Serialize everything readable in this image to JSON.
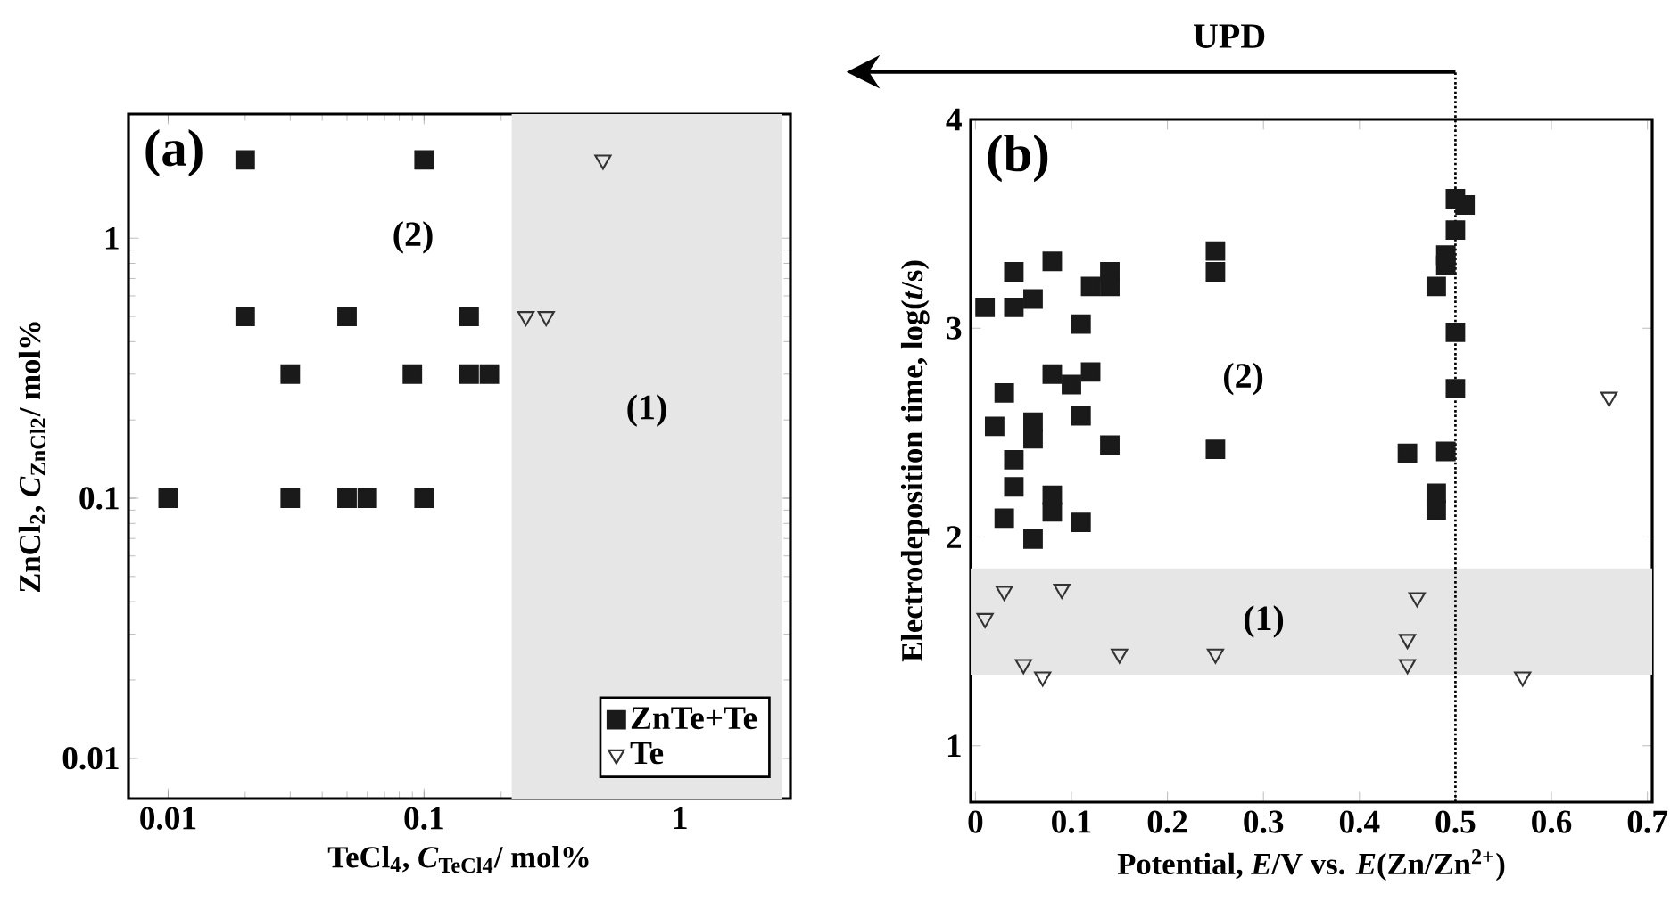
{
  "chart_data": [
    {
      "type": "scatter",
      "xlabel": "TeCl$_{4}$, *C*$_{TeCl4}$/ mol%",
      "ylabel": "ZnCl$_{2}$, *C*$_{ZnCl2}$/ mol%",
      "log": "xy",
      "xlim": [
        0.007,
        2.7
      ],
      "ylim": [
        0.007,
        3
      ],
      "xticks": [
        0.01,
        0.1,
        1
      ],
      "yticks": [
        0.01,
        0.1,
        1
      ],
      "legend": "bottom right",
      "annotations": [
        "(a)",
        "(2)"
      ],
      "bands": [
        {
          "axis": "x",
          "from": 0.22,
          "to": 2.5,
          "label": "(1)",
          "color": "#e6e6e6"
        }
      ],
      "series": [
        {
          "name": "ZnTe+Te",
          "color": "#1a1a1a",
          "marker": "square",
          "x": [
            0.02,
            0.1,
            0.02,
            0.05,
            0.15,
            0.03,
            0.09,
            0.15,
            0.18,
            0.01,
            0.03,
            0.05,
            0.06,
            0.1
          ],
          "values": [
            2,
            2,
            0.5,
            0.5,
            0.5,
            0.3,
            0.3,
            0.3,
            0.3,
            0.1,
            0.1,
            0.1,
            0.1,
            0.1
          ]
        },
        {
          "name": "Te",
          "color": "#333333",
          "marker": "triangle",
          "x": [
            0.5,
            0.25,
            0.3
          ],
          "values": [
            2,
            0.5,
            0.5
          ]
        }
      ]
    },
    {
      "type": "scatter",
      "xlabel": "Potential, *E*/V vs. *E*(Zn/Zn$^{2+}$)",
      "ylabel": "Electrodeposition time, log(*t*/s)",
      "xlim": [
        -0.005,
        0.705
      ],
      "ylim": [
        0.73,
        4
      ],
      "xticks": [
        0,
        0.1,
        0.2,
        0.3,
        0.4,
        0.5,
        0.6,
        0.7
      ],
      "yticks": [
        1,
        2,
        3,
        4
      ],
      "annotations": [
        "(b)",
        "(2)"
      ],
      "bands": [
        {
          "axis": "y",
          "from": 1.34,
          "to": 1.85,
          "label": "(1)",
          "color": "#e6e6e6"
        }
      ],
      "ref_lines": [
        {
          "axis": "x",
          "value": 0.5,
          "label": "UPD",
          "line_style": "dotted"
        }
      ],
      "series": [
        {
          "color": "#1a1a1a",
          "marker": "square",
          "x": [
            0.01,
            0.04,
            0.04,
            0.06,
            0.08,
            0.12,
            0.14,
            0.14,
            0.11,
            0.25,
            0.25,
            0.03,
            0.02,
            0.08,
            0.1,
            0.12,
            0.06,
            0.06,
            0.04,
            0.04,
            0.11,
            0.14,
            0.25,
            0.03,
            0.06,
            0.08,
            0.08,
            0.11,
            0.45,
            0.49,
            0.48,
            0.48,
            0.48,
            0.49,
            0.49,
            0.5,
            0.5,
            0.51,
            0.5,
            0.5
          ],
          "values": [
            3.1,
            3.27,
            3.1,
            3.14,
            3.32,
            3.2,
            3.2,
            3.27,
            3.02,
            3.37,
            3.27,
            2.69,
            2.53,
            2.78,
            2.73,
            2.79,
            2.55,
            2.47,
            2.37,
            2.24,
            2.58,
            2.44,
            2.42,
            2.09,
            1.99,
            2.12,
            2.2,
            2.07,
            2.4,
            2.41,
            2.13,
            2.21,
            3.2,
            3.35,
            3.3,
            3.47,
            3.62,
            3.59,
            2.98,
            2.71
          ]
        },
        {
          "color": "#333333",
          "marker": "triangle",
          "x": [
            0.01,
            0.03,
            0.09,
            0.05,
            0.07,
            0.15,
            0.25,
            0.45,
            0.45,
            0.46,
            0.57,
            0.66
          ],
          "values": [
            1.61,
            1.74,
            1.75,
            1.39,
            1.33,
            1.44,
            1.44,
            1.51,
            1.39,
            1.71,
            1.33,
            2.67
          ]
        }
      ]
    }
  ]
}
